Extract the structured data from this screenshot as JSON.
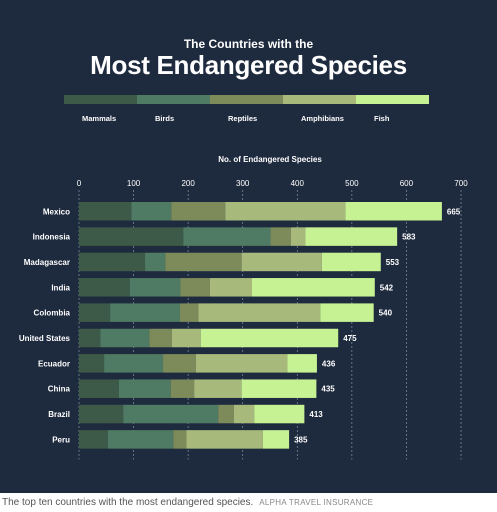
{
  "title_line1": "The Countries with the",
  "title_line2": "Most Endangered Species",
  "caption": {
    "text": "The top ten countries with the most endangered species.",
    "credit": "ALPHA TRAVEL INSURANCE"
  },
  "colors": {
    "background": "#1e2a3e",
    "Mammals": "#3d5a48",
    "Birds": "#4f7a63",
    "Reptiles": "#7d8a5a",
    "Amphibians": "#a7ba7c",
    "Fish": "#c6f294"
  },
  "chart_data": {
    "type": "bar",
    "orientation": "horizontal",
    "stacked": true,
    "xlabel": "No. of Endangered Species",
    "xlim": [
      0,
      700
    ],
    "xticks": [
      0,
      100,
      200,
      300,
      400,
      500,
      600,
      700
    ],
    "legend_position": "top",
    "categories": [
      "Mexico",
      "Indonesia",
      "Madagascar",
      "India",
      "Colombia",
      "United States",
      "Ecuador",
      "China",
      "Brazil",
      "Peru"
    ],
    "series": [
      {
        "name": "Mammals",
        "values": [
          96,
          191,
          121,
          93,
          57,
          39,
          46,
          73,
          81,
          53
        ]
      },
      {
        "name": "Birds",
        "values": [
          73,
          160,
          37,
          93,
          128,
          90,
          108,
          95,
          174,
          120
        ]
      },
      {
        "name": "Reptiles",
        "values": [
          99,
          37,
          140,
          54,
          34,
          41,
          60,
          43,
          29,
          24
        ]
      },
      {
        "name": "Amphibians",
        "values": [
          220,
          27,
          147,
          77,
          223,
          53,
          168,
          87,
          37,
          140
        ]
      },
      {
        "name": "Fish",
        "values": [
          177,
          168,
          108,
          225,
          98,
          252,
          54,
          137,
          92,
          48
        ]
      }
    ],
    "totals": [
      665,
      583,
      553,
      542,
      540,
      475,
      436,
      435,
      413,
      385
    ]
  }
}
